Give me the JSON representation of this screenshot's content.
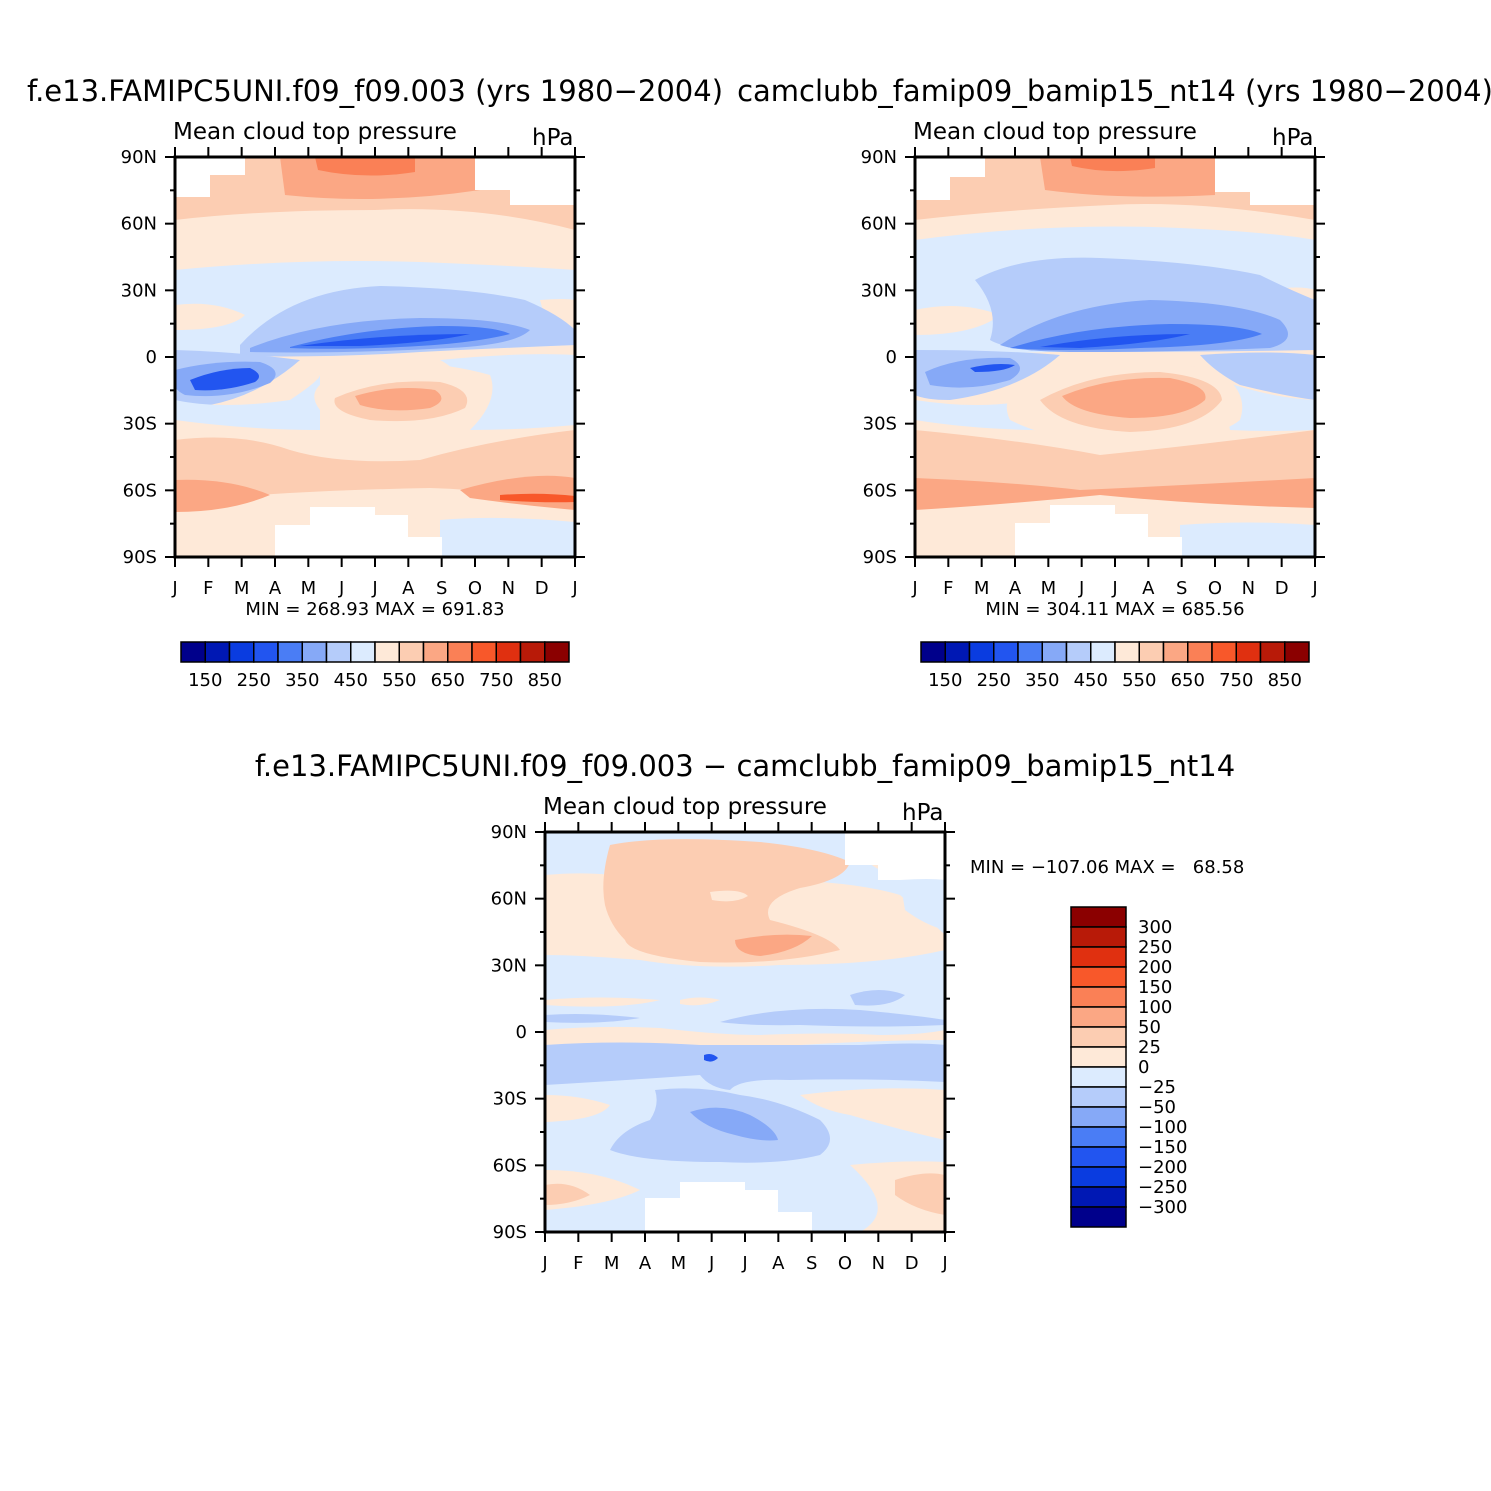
{
  "chart_data": [
    {
      "type": "heatmap",
      "title": "f.e13.FAMIPC5UNI.f09_f09.003 (yrs 1980−2004)",
      "subtitle": "Mean cloud top pressure",
      "units": "hPa",
      "x_ticks": [
        "J",
        "F",
        "M",
        "A",
        "M",
        "J",
        "J",
        "A",
        "S",
        "O",
        "N",
        "D",
        "J"
      ],
      "y_ticks": [
        "90N",
        "60N",
        "30N",
        "0",
        "30S",
        "60S",
        "90S"
      ],
      "stats": "MIN = 268.93 MAX = 691.83",
      "colorbar": {
        "orientation": "horizontal",
        "labels": [
          "150",
          "250",
          "350",
          "450",
          "550",
          "650",
          "750",
          "850"
        ],
        "colors": [
          "#00008b",
          "#0018b4",
          "#0a3ce0",
          "#2255f0",
          "#4a7df5",
          "#86a9f7",
          "#b5ccfa",
          "#dcebfe",
          "#fee9d8",
          "#fccdb2",
          "#fba784",
          "#fa8056",
          "#f8582a",
          "#e03010",
          "#b81a08",
          "#8b0000"
        ]
      },
      "ylim": [
        "90S",
        "90N"
      ],
      "grid": false
    },
    {
      "type": "heatmap",
      "title": "camclubb_famip09_bamip15_nt14 (yrs 1980−2004)",
      "subtitle": "Mean cloud top pressure",
      "units": "hPa",
      "x_ticks": [
        "J",
        "F",
        "M",
        "A",
        "M",
        "J",
        "J",
        "A",
        "S",
        "O",
        "N",
        "D",
        "J"
      ],
      "y_ticks": [
        "90N",
        "60N",
        "30N",
        "0",
        "30S",
        "60S",
        "90S"
      ],
      "stats": "MIN = 304.11 MAX = 685.56",
      "colorbar": {
        "orientation": "horizontal",
        "labels": [
          "150",
          "250",
          "350",
          "450",
          "550",
          "650",
          "750",
          "850"
        ],
        "colors": [
          "#00008b",
          "#0018b4",
          "#0a3ce0",
          "#2255f0",
          "#4a7df5",
          "#86a9f7",
          "#b5ccfa",
          "#dcebfe",
          "#fee9d8",
          "#fccdb2",
          "#fba784",
          "#fa8056",
          "#f8582a",
          "#e03010",
          "#b81a08",
          "#8b0000"
        ]
      },
      "ylim": [
        "90S",
        "90N"
      ],
      "grid": false
    },
    {
      "type": "heatmap",
      "title": "f.e13.FAMIPC5UNI.f09_f09.003 − camclubb_famip09_bamip15_nt14",
      "subtitle": "Mean cloud top pressure",
      "units": "hPa",
      "x_ticks": [
        "J",
        "F",
        "M",
        "A",
        "M",
        "J",
        "J",
        "A",
        "S",
        "O",
        "N",
        "D",
        "J"
      ],
      "y_ticks": [
        "90N",
        "60N",
        "30N",
        "0",
        "30S",
        "60S",
        "90S"
      ],
      "stats": "MIN = −107.06 MAX =   68.58",
      "colorbar": {
        "orientation": "vertical",
        "labels": [
          "300",
          "250",
          "200",
          "150",
          "100",
          "50",
          "25",
          "0",
          "−25",
          "−50",
          "−100",
          "−150",
          "−200",
          "−250",
          "−300"
        ],
        "colors": [
          "#8b0000",
          "#b81a08",
          "#e03010",
          "#f8582a",
          "#fa8056",
          "#fba784",
          "#fccdb2",
          "#fee9d8",
          "#dcebfe",
          "#b5ccfa",
          "#86a9f7",
          "#4a7df5",
          "#2255f0",
          "#0a3ce0",
          "#0018b4",
          "#00008b"
        ]
      },
      "ylim": [
        "90S",
        "90N"
      ],
      "grid": false
    }
  ]
}
